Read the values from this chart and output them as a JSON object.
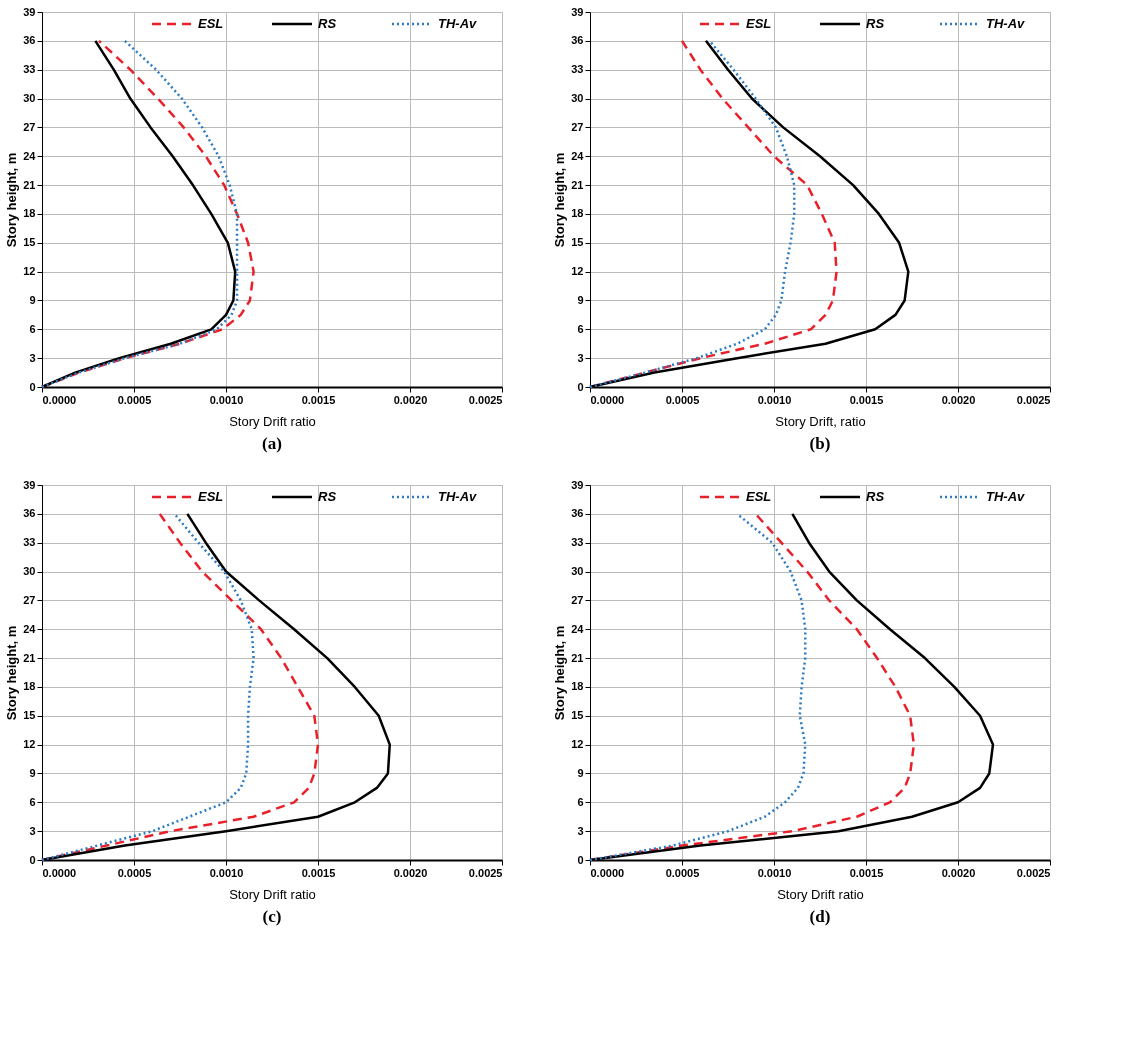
{
  "chart_data": [
    {
      "type": "line",
      "xlabel": "Story Drift ratio",
      "ylabel": "Story height, m",
      "annotations": [
        "(a)"
      ],
      "xlim": [
        0,
        0.0025
      ],
      "xticks": [
        {
          "value": 0,
          "label": "0.0000"
        },
        {
          "value": 0.0005,
          "label": "0.0005"
        },
        {
          "value": 0.001,
          "label": "0.0010"
        },
        {
          "value": 0.0015,
          "label": "0.0015"
        },
        {
          "value": 0.002,
          "label": "0.0020"
        },
        {
          "value": 0.0025,
          "label": "0.0025"
        }
      ],
      "ylim": [
        0,
        39
      ],
      "yticks": [
        0,
        3,
        6,
        9,
        12,
        15,
        18,
        21,
        24,
        27,
        30,
        33,
        36,
        39
      ],
      "grid": true,
      "legend": "top",
      "marker": "none",
      "series": [
        {
          "name": "ESL",
          "color": "#e8202a",
          "line_style": "dashed",
          "x": [
            0,
            0.0002,
            0.00045,
            0.00075,
            0.00098,
            0.00108,
            0.00113,
            0.00115,
            0.00112,
            0.00106,
            0.00099,
            0.00089,
            0.00077,
            0.00063,
            0.00048,
            0.00031
          ],
          "values": [
            0,
            1.5,
            3,
            4.5,
            6,
            7.5,
            9,
            12,
            15,
            18,
            21,
            24,
            27,
            30,
            33,
            36
          ]
        },
        {
          "name": "RS",
          "color": "#000000",
          "line_style": "solid",
          "x": [
            0,
            0.00018,
            0.00042,
            0.0007,
            0.00092,
            0.001,
            0.00104,
            0.00105,
            0.00101,
            0.00092,
            0.00082,
            0.00071,
            0.00059,
            0.00048,
            0.00039,
            0.00029
          ],
          "values": [
            0,
            1.5,
            3,
            4.5,
            6,
            7.5,
            9,
            12,
            15,
            18,
            21,
            24,
            27,
            30,
            33,
            36
          ]
        },
        {
          "name": "TH-Av",
          "color": "#2b7bc4",
          "line_style": "dotted",
          "x": [
            0,
            0.0002,
            0.00045,
            0.00075,
            0.00095,
            0.00103,
            0.00106,
            0.00106,
            0.00106,
            0.00106,
            0.00102,
            0.00096,
            0.00087,
            0.00076,
            0.00062,
            0.00045
          ],
          "values": [
            0,
            1.5,
            3,
            4.5,
            6,
            7.5,
            9,
            12,
            15,
            18,
            21,
            24,
            27,
            30,
            33,
            36
          ]
        }
      ]
    },
    {
      "type": "line",
      "xlabel": "Story Drift, ratio",
      "ylabel": "Story height, m",
      "annotations": [
        "(b)"
      ],
      "xlim": [
        0,
        0.0025
      ],
      "xticks": [
        {
          "value": 0,
          "label": "0.0000"
        },
        {
          "value": 0.0005,
          "label": "0.0005"
        },
        {
          "value": 0.001,
          "label": "0.0010"
        },
        {
          "value": 0.0015,
          "label": "0.0015"
        },
        {
          "value": 0.002,
          "label": "0.0020"
        },
        {
          "value": 0.0025,
          "label": "0.0025"
        }
      ],
      "ylim": [
        0,
        39
      ],
      "yticks": [
        0,
        3,
        6,
        9,
        12,
        15,
        18,
        21,
        24,
        27,
        30,
        33,
        36,
        39
      ],
      "grid": true,
      "legend": "top",
      "marker": "none",
      "series": [
        {
          "name": "ESL",
          "color": "#e8202a",
          "line_style": "dashed",
          "x": [
            0,
            0.0003,
            0.0006,
            0.00095,
            0.0012,
            0.00128,
            0.00132,
            0.00134,
            0.00133,
            0.00126,
            0.00118,
            0.001,
            0.00086,
            0.00072,
            0.0006,
            0.0005
          ],
          "values": [
            0,
            1.5,
            3,
            4.5,
            6,
            7.5,
            9,
            12,
            15,
            18,
            21,
            24,
            27,
            30,
            33,
            36
          ]
        },
        {
          "name": "RS",
          "color": "#000000",
          "line_style": "solid",
          "x": [
            0,
            0.00035,
            0.0008,
            0.00128,
            0.00155,
            0.00166,
            0.00171,
            0.00173,
            0.00168,
            0.00157,
            0.00143,
            0.00125,
            0.00105,
            0.00088,
            0.00075,
            0.00063
          ],
          "values": [
            0,
            1.5,
            3,
            4.5,
            6,
            7.5,
            9,
            12,
            15,
            18,
            21,
            24,
            27,
            30,
            33,
            36
          ]
        },
        {
          "name": "TH-Av",
          "color": "#2b7bc4",
          "line_style": "dotted",
          "x": [
            0,
            0.0003,
            0.00058,
            0.0008,
            0.00095,
            0.00101,
            0.00104,
            0.00106,
            0.00109,
            0.00111,
            0.00111,
            0.00107,
            0.00101,
            0.0009,
            0.00078,
            0.00065
          ],
          "values": [
            0,
            1.5,
            3,
            4.5,
            6,
            7.5,
            9,
            12,
            15,
            18,
            21,
            24,
            27,
            30,
            33,
            36
          ]
        }
      ]
    },
    {
      "type": "line",
      "xlabel": "Story Drift ratio",
      "ylabel": "Story height, m",
      "annotations": [
        "(c)"
      ],
      "xlim": [
        0,
        0.0025
      ],
      "xticks": [
        {
          "value": 0,
          "label": "0.0000"
        },
        {
          "value": 0.0005,
          "label": "0.0005"
        },
        {
          "value": 0.001,
          "label": "0.0010"
        },
        {
          "value": 0.0015,
          "label": "0.0015"
        },
        {
          "value": 0.002,
          "label": "0.0020"
        },
        {
          "value": 0.0025,
          "label": "0.0025"
        }
      ],
      "ylim": [
        0,
        39
      ],
      "yticks": [
        0,
        3,
        6,
        9,
        12,
        15,
        18,
        21,
        24,
        27,
        30,
        33,
        36,
        39
      ],
      "grid": true,
      "legend": "top",
      "marker": "none",
      "series": [
        {
          "name": "ESL",
          "color": "#e8202a",
          "line_style": "dashed",
          "x": [
            0,
            0.00035,
            0.0007,
            0.00115,
            0.00137,
            0.00145,
            0.00148,
            0.0015,
            0.00148,
            0.00139,
            0.0013,
            0.00119,
            0.00103,
            0.00087,
            0.00075,
            0.00064
          ],
          "values": [
            0,
            1.5,
            3,
            4.5,
            6,
            7.5,
            9,
            12,
            15,
            18,
            21,
            24,
            27,
            30,
            33,
            36
          ]
        },
        {
          "name": "RS",
          "color": "#000000",
          "line_style": "solid",
          "x": [
            0,
            0.00045,
            0.001,
            0.0015,
            0.0017,
            0.00182,
            0.00188,
            0.00189,
            0.00183,
            0.0017,
            0.00155,
            0.00137,
            0.00118,
            0.001,
            0.00089,
            0.00079
          ],
          "values": [
            0,
            1.5,
            3,
            4.5,
            6,
            7.5,
            9,
            12,
            15,
            18,
            21,
            24,
            27,
            30,
            33,
            36
          ]
        },
        {
          "name": "TH-Av",
          "color": "#2b7bc4",
          "line_style": "dotted",
          "x": [
            0,
            0.0003,
            0.0006,
            0.0008,
            0.001,
            0.00108,
            0.00111,
            0.00112,
            0.00112,
            0.00113,
            0.00115,
            0.00114,
            0.00108,
            0.00099,
            0.00085,
            0.00072
          ],
          "values": [
            0,
            1.5,
            3,
            4.5,
            6,
            7.5,
            9,
            12,
            15,
            18,
            21,
            24,
            27,
            30,
            33,
            36
          ]
        }
      ]
    },
    {
      "type": "line",
      "xlabel": "Story Drift ratio",
      "ylabel": "Story height, m",
      "annotations": [
        "(d)"
      ],
      "xlim": [
        0,
        0.0025
      ],
      "xticks": [
        {
          "value": 0,
          "label": "0.0000"
        },
        {
          "value": 0.0005,
          "label": "0.0005"
        },
        {
          "value": 0.001,
          "label": "0.0010"
        },
        {
          "value": 0.0015,
          "label": "0.0015"
        },
        {
          "value": 0.002,
          "label": "0.0020"
        },
        {
          "value": 0.0025,
          "label": "0.0025"
        }
      ],
      "ylim": [
        0,
        39
      ],
      "yticks": [
        0,
        3,
        6,
        9,
        12,
        15,
        18,
        21,
        24,
        27,
        30,
        33,
        36,
        39
      ],
      "grid": true,
      "legend": "top",
      "marker": "none",
      "series": [
        {
          "name": "ESL",
          "color": "#e8202a",
          "line_style": "dashed",
          "x": [
            0,
            0.0005,
            0.0011,
            0.00145,
            0.00163,
            0.00171,
            0.00174,
            0.00176,
            0.00174,
            0.00166,
            0.00156,
            0.00145,
            0.0013,
            0.00118,
            0.00104,
            0.0009
          ],
          "values": [
            0,
            1.5,
            3,
            4.5,
            6,
            7.5,
            9,
            12,
            15,
            18,
            21,
            24,
            27,
            30,
            33,
            36
          ]
        },
        {
          "name": "RS",
          "color": "#000000",
          "line_style": "solid",
          "x": [
            0,
            0.0006,
            0.00135,
            0.00175,
            0.002,
            0.00212,
            0.00217,
            0.00219,
            0.00212,
            0.00198,
            0.00182,
            0.00163,
            0.00145,
            0.0013,
            0.00119,
            0.0011
          ],
          "values": [
            0,
            1.5,
            3,
            4.5,
            6,
            7.5,
            9,
            12,
            15,
            18,
            21,
            24,
            27,
            30,
            33,
            36
          ]
        },
        {
          "name": "TH-Av",
          "color": "#2b7bc4",
          "line_style": "dotted",
          "x": [
            0,
            0.00045,
            0.00075,
            0.00095,
            0.00106,
            0.00113,
            0.00116,
            0.00117,
            0.00114,
            0.00115,
            0.00117,
            0.00117,
            0.00115,
            0.00109,
            0.00099,
            0.0008
          ],
          "values": [
            0,
            1.5,
            3,
            4.5,
            6,
            7.5,
            9,
            12,
            15,
            18,
            21,
            24,
            27,
            30,
            33,
            36
          ]
        }
      ]
    }
  ]
}
